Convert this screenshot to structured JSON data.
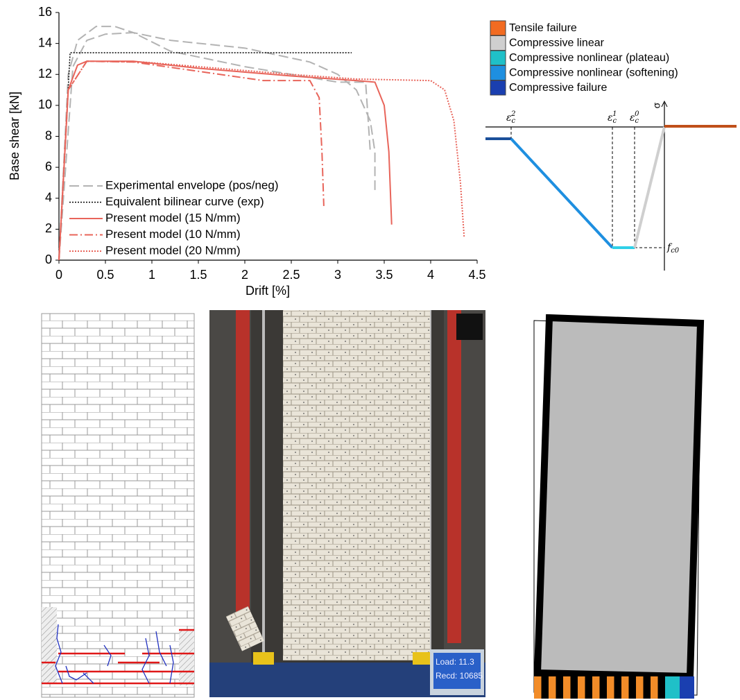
{
  "chart_data": {
    "type": "line",
    "x_label": "Drift [%]",
    "y_label": "Base shear [kN]",
    "xlim": [
      0,
      4.5
    ],
    "xticks": [
      0,
      0.5,
      1,
      1.5,
      2,
      2.5,
      3,
      3.5,
      4,
      4.5
    ],
    "ylim": [
      0,
      16
    ],
    "yticks": [
      0,
      2,
      4,
      6,
      8,
      10,
      12,
      14,
      16
    ],
    "grid": false,
    "legend": "lower left",
    "series": [
      {
        "name": "Experimental envelope (pos/neg)",
        "color": "#b3b3b3",
        "line_style": "dashed",
        "x": [
          0,
          0.1,
          0.2,
          0.4,
          0.6,
          0.8,
          1.2,
          2,
          2.7,
          3.0,
          3.2,
          3.35,
          3.4,
          3.4,
          null,
          0,
          0.15,
          0.3,
          0.5,
          0.8,
          1.2,
          2,
          3,
          3.3,
          3.35
        ],
        "values": [
          0,
          12,
          14.2,
          15.1,
          15.1,
          14.7,
          14.2,
          13.7,
          12.8,
          12,
          11,
          9,
          7,
          4.5,
          null,
          0,
          12.5,
          14.2,
          14.6,
          14.7,
          13.5,
          12.5,
          11.5,
          11.5,
          7
        ]
      },
      {
        "name": "Equivalent bilinear curve (exp)",
        "color": "#000000",
        "line_style": "dotted",
        "x": [
          0,
          0.12,
          3.15
        ],
        "values": [
          0,
          13.4,
          13.4
        ]
      },
      {
        "name": "Present model (15 N/mm)",
        "color": "#e8645a",
        "line_style": "solid",
        "x": [
          0,
          0.1,
          0.2,
          0.3,
          0.8,
          1.5,
          2.5,
          3.2,
          3.4,
          3.5,
          3.55,
          3.58
        ],
        "values": [
          0,
          11,
          12.6,
          12.85,
          12.85,
          12.4,
          11.9,
          11.6,
          11.5,
          10,
          7,
          2.3
        ]
      },
      {
        "name": "Present model (10 N/mm)",
        "color": "#e8645a",
        "line_style": "dashdot",
        "x": [
          0,
          0.1,
          0.3,
          0.8,
          1.5,
          2.2,
          2.7,
          2.8,
          2.83,
          2.85
        ],
        "values": [
          0,
          11,
          12.85,
          12.8,
          12.2,
          11.6,
          11.6,
          10.5,
          7,
          3.5
        ]
      },
      {
        "name": "Present model (20 N/mm)",
        "color": "#e8645a",
        "line_style": "dotted",
        "x": [
          0,
          0.1,
          0.3,
          0.9,
          1.5,
          2.5,
          3.2,
          4,
          4.15,
          4.25,
          4.32,
          4.36
        ],
        "values": [
          0,
          11,
          12.85,
          12.8,
          12.5,
          12,
          11.7,
          11.6,
          11,
          9,
          5,
          1.5
        ]
      }
    ]
  },
  "material_legend": [
    {
      "label": "Tensile failure",
      "color": "#f26b21"
    },
    {
      "label": "Compressive linear",
      "color": "#cfcfcf"
    },
    {
      "label": "Compressive nonlinear (plateau)",
      "color": "#1fc0c8"
    },
    {
      "label": "Compressive nonlinear (softening)",
      "color": "#1e8fe0"
    },
    {
      "label": "Compressive failure",
      "color": "#1a3fb0"
    }
  ],
  "constitutive_diagram": {
    "axis_label": "σ",
    "strain_labels": [
      {
        "base": "ε",
        "sub": "c",
        "sup": "2"
      },
      {
        "base": "ε",
        "sub": "c",
        "sup": "1"
      },
      {
        "base": "ε",
        "sub": "c",
        "sup": "0"
      }
    ],
    "strength_label": {
      "base": "f",
      "sub": "c0"
    }
  },
  "photo": {
    "monitor_lines": [
      "Load: 11.3",
      "Recd: 10685"
    ]
  }
}
